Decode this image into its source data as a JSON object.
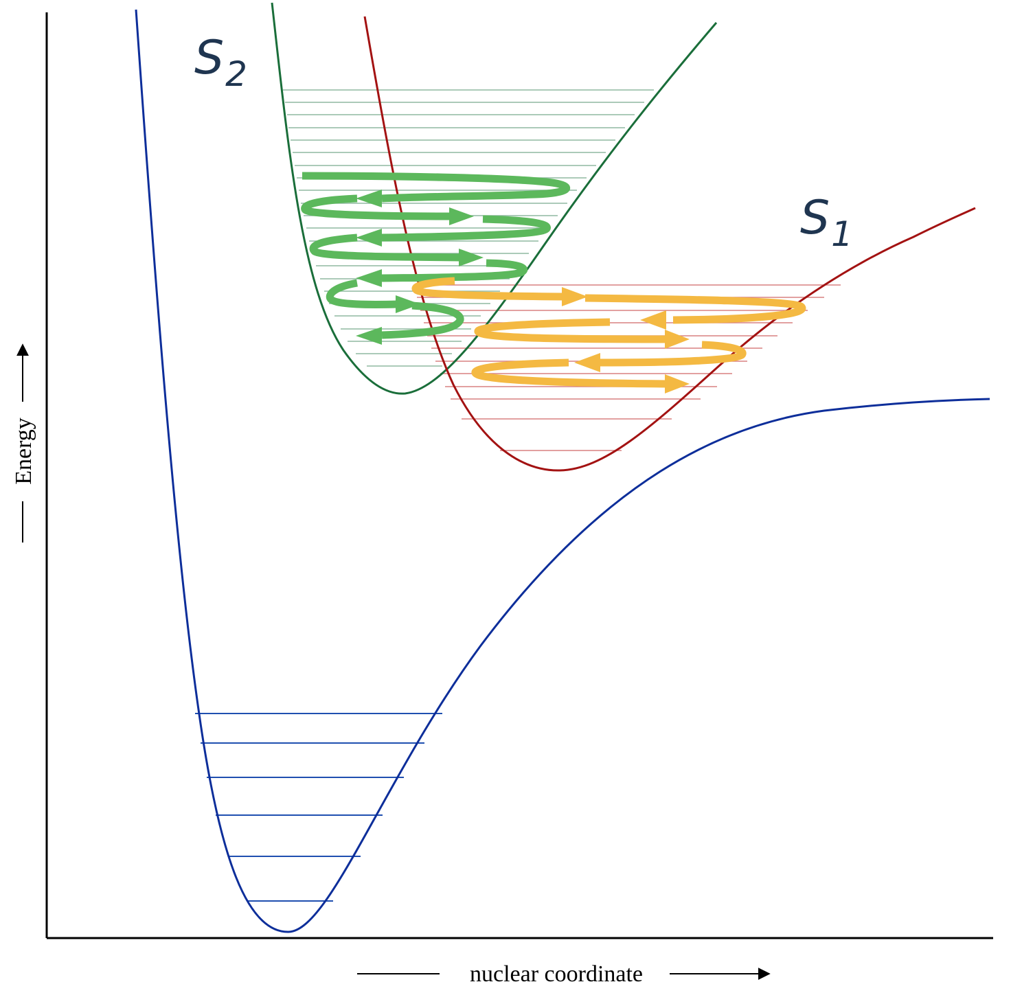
{
  "diagram": {
    "x_axis_label": "nuclear coordinate",
    "y_axis_label": "Energy",
    "states": [
      {
        "letter": "S",
        "subscript": "2",
        "curve_color": "#1a6e3a",
        "level_color": "#8fb9a0",
        "arrow_color": "#5cb85c"
      },
      {
        "letter": "S",
        "subscript": "1",
        "curve_color": "#a31212",
        "level_color": "#d98080",
        "arrow_color": "#f4b942"
      }
    ],
    "ground_state": {
      "curve_color": "#0d2e9a",
      "level_color": "#1f4fb0"
    },
    "axis_color": "#000000"
  }
}
